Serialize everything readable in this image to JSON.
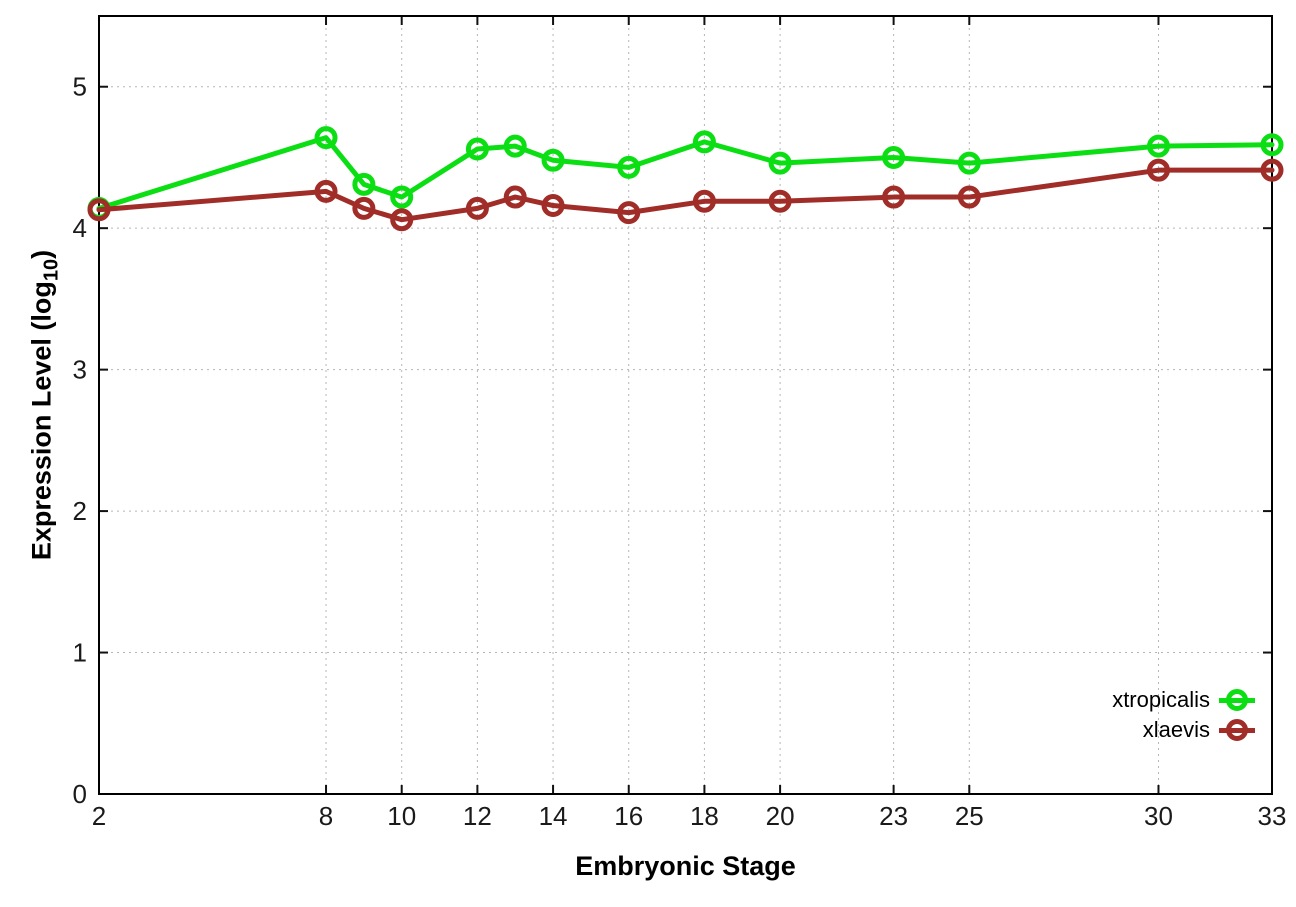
{
  "figure": {
    "background": "#ffffff",
    "border_color": "#000000",
    "grid_color": "#b5b5b5",
    "tick_label_color": "#1a1a1a"
  },
  "axes": {
    "xlabel": "Embryonic Stage",
    "ylabel_main": "Expression Level (log",
    "ylabel_sub": "10",
    "ylabel_suffix": ")"
  },
  "chart_data": {
    "type": "line",
    "title": "",
    "xlabel": "Embryonic Stage",
    "ylabel": "Expression Level (log10)",
    "x": [
      2,
      8,
      9,
      10,
      12,
      13,
      14,
      16,
      18,
      20,
      23,
      25,
      30,
      33
    ],
    "series": [
      {
        "name": "xtropicalis",
        "color": "#0bdf14",
        "marker": "open-circle",
        "values": [
          4.14,
          4.64,
          4.31,
          4.22,
          4.56,
          4.58,
          4.48,
          4.43,
          4.61,
          4.46,
          4.5,
          4.46,
          4.58,
          4.59
        ]
      },
      {
        "name": "xlaevis",
        "color": "#a02d27",
        "marker": "open-circle",
        "values": [
          4.13,
          4.26,
          4.14,
          4.06,
          4.14,
          4.22,
          4.16,
          4.11,
          4.19,
          4.19,
          4.22,
          4.22,
          4.41,
          4.41
        ]
      }
    ],
    "xticks": [
      2,
      8,
      10,
      12,
      14,
      16,
      18,
      20,
      23,
      25,
      30,
      33
    ],
    "xtick_labels": [
      "2",
      "8",
      "10",
      "12",
      "14",
      "16",
      "18",
      "20",
      "23",
      "25",
      "30",
      "33"
    ],
    "yticks": [
      0,
      1,
      2,
      3,
      4,
      5
    ],
    "ytick_labels": [
      "0",
      "1",
      "2",
      "3",
      "4",
      "5"
    ],
    "xlim": [
      2,
      33
    ],
    "ylim": [
      0,
      5.5
    ],
    "grid": "dotted",
    "legend_position": "bottom-right"
  }
}
